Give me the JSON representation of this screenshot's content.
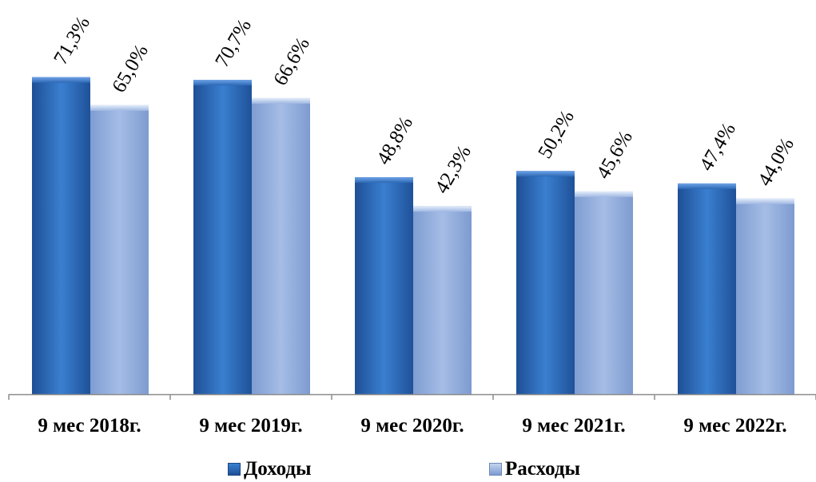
{
  "chart_data": {
    "type": "bar",
    "categories": [
      "9 мес 2018г.",
      "9 мес 2019г.",
      "9 мес 2020г.",
      "9 мес 2021г.",
      "9 мес 2022г."
    ],
    "series": [
      {
        "name": "Доходы",
        "values": [
          71.3,
          70.7,
          48.8,
          50.2,
          47.4
        ],
        "labels": [
          "71,3%",
          "70,7%",
          "48,8%",
          "50,2%",
          "47,4%"
        ],
        "color": "#2f6cb8"
      },
      {
        "name": "Расходы",
        "values": [
          65.0,
          66.6,
          42.3,
          45.6,
          44.0
        ],
        "labels": [
          "65,0%",
          "66,6%",
          "42,3%",
          "45,6%",
          "44,0%"
        ],
        "color": "#8eaadb"
      }
    ],
    "ylim": [
      0,
      86.5
    ],
    "grid": false,
    "legend_position": "bottom"
  }
}
